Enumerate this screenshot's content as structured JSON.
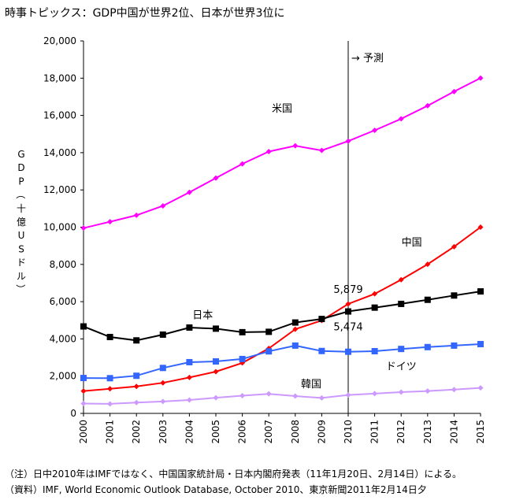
{
  "title": "時事トピックス：GDP中国が世界2位、日本が世界3位に",
  "notes": [
    "（注）日中2010年はIMFではなく、中国国家統計局・日本内閣府発表（11年1月20日、2月14日）による。",
    "（資料）IMF, World Economic Outlook Database, October 2010、東京新聞2011年2月14日夕"
  ],
  "chart_data": {
    "type": "line",
    "title": "",
    "xlabel": "",
    "ylabel": "GDP（十億USドル）",
    "ylabel_chars": [
      "G",
      "D",
      "P",
      "（",
      "十",
      "億",
      "U",
      "S",
      "ド",
      "ル",
      "）"
    ],
    "x": [
      2000,
      2001,
      2002,
      2003,
      2004,
      2005,
      2006,
      2007,
      2008,
      2009,
      2010,
      2011,
      2012,
      2013,
      2014,
      2015
    ],
    "x_tick_labels": [
      "2000",
      "2001",
      "2002",
      "2003",
      "2004",
      "2005",
      "2006",
      "2007",
      "2008",
      "2009",
      "2010",
      "2011",
      "2012",
      "2013",
      "2014",
      "2015"
    ],
    "ylim": [
      0,
      20000
    ],
    "y_ticks": [
      0,
      2000,
      4000,
      6000,
      8000,
      10000,
      12000,
      14000,
      16000,
      18000,
      20000
    ],
    "y_tick_labels": [
      "0",
      "2,000",
      "4,000",
      "6,000",
      "8,000",
      "10,000",
      "12,000",
      "14,000",
      "16,000",
      "18,000",
      "20,000"
    ],
    "grid": false,
    "forecast_year": 2010,
    "forecast_label": "→ 予測",
    "series": [
      {
        "name": "米国",
        "color": "#ff00ff",
        "marker": "diamond",
        "values": [
          9950,
          10290,
          10640,
          11140,
          11870,
          12640,
          13400,
          14060,
          14370,
          14120,
          14620,
          15200,
          15820,
          16520,
          17280,
          18010
        ]
      },
      {
        "name": "中国",
        "color": "#ff0000",
        "marker": "diamond",
        "values": [
          1200,
          1320,
          1450,
          1640,
          1930,
          2240,
          2710,
          3490,
          4520,
          4990,
          5879,
          6420,
          7180,
          8010,
          8950,
          10000
        ]
      },
      {
        "name": "日本",
        "color": "#000000",
        "marker": "square",
        "values": [
          4670,
          4100,
          3920,
          4230,
          4610,
          4550,
          4360,
          4380,
          4880,
          5070,
          5474,
          5680,
          5880,
          6100,
          6330,
          6550
        ]
      },
      {
        "name": "ドイツ",
        "color": "#3366ff",
        "marker": "square",
        "values": [
          1900,
          1890,
          2020,
          2440,
          2750,
          2790,
          2920,
          3330,
          3640,
          3350,
          3310,
          3340,
          3460,
          3560,
          3640,
          3720
        ]
      },
      {
        "name": "韓国",
        "color": "#cc99ff",
        "marker": "diamond",
        "values": [
          530,
          510,
          580,
          640,
          720,
          840,
          950,
          1050,
          930,
          830,
          990,
          1060,
          1140,
          1200,
          1280,
          1370
        ]
      }
    ],
    "annotations": [
      {
        "text": "5,879",
        "x": 2010,
        "y": 5879,
        "series": "中国"
      },
      {
        "text": "5,474",
        "x": 2010,
        "y": 5474,
        "series": "日本"
      }
    ]
  }
}
